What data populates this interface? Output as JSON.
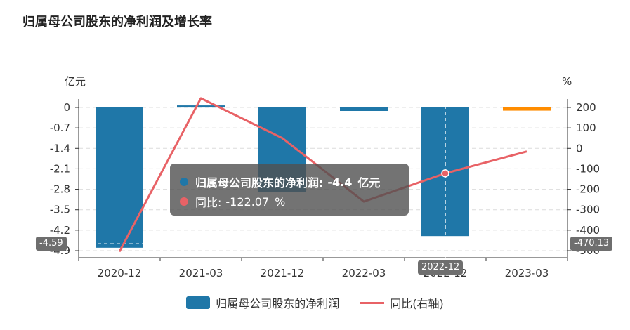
{
  "title": "归属母公司股东的净利润及增长率",
  "chart_data": {
    "type": "bar",
    "categories": [
      "2020-12",
      "2021-03",
      "2021-12",
      "2022-03",
      "2022-12",
      "2023-03"
    ],
    "series": [
      {
        "name": "归属母公司股东的净利润",
        "type": "bar",
        "axis": "left",
        "values": [
          -4.8,
          0.07,
          -2.9,
          -0.12,
          -4.4,
          -0.11
        ],
        "color": "#1f77a8",
        "highlight_color": "#ff8c00"
      },
      {
        "name": "同比(右轴)",
        "type": "line",
        "axis": "right",
        "values": [
          -505,
          245,
          50,
          -260,
          -122.07,
          -15
        ],
        "color": "#e86266"
      }
    ],
    "y_left": {
      "unit": "亿元",
      "ticks": [
        "0",
        "-0.7",
        "-1.4",
        "-2.1",
        "-2.8",
        "-3.5",
        "-4.2",
        "-4.9"
      ],
      "ylim": [
        -4.9,
        0
      ]
    },
    "y_right": {
      "unit": "%",
      "ticks": [
        "200",
        "100",
        "0",
        "-100",
        "-200",
        "-300",
        "-400",
        "-500"
      ],
      "ylim": [
        -500,
        200
      ]
    },
    "grid": true,
    "legend_position": "bottom"
  },
  "tooltip": {
    "category": "2022-12",
    "bar_label": "归属母公司股东的净利润:",
    "bar_value": "-4.4",
    "bar_unit": "亿元",
    "line_label": "同比:",
    "line_value": "-122.07",
    "line_unit": "%"
  },
  "axis_pointer": {
    "left_value": "-4.59",
    "right_value": "-470.13",
    "x_value": "2022-12"
  },
  "legend": {
    "bar": "归属母公司股东的净利润",
    "line": "同比(右轴)"
  }
}
